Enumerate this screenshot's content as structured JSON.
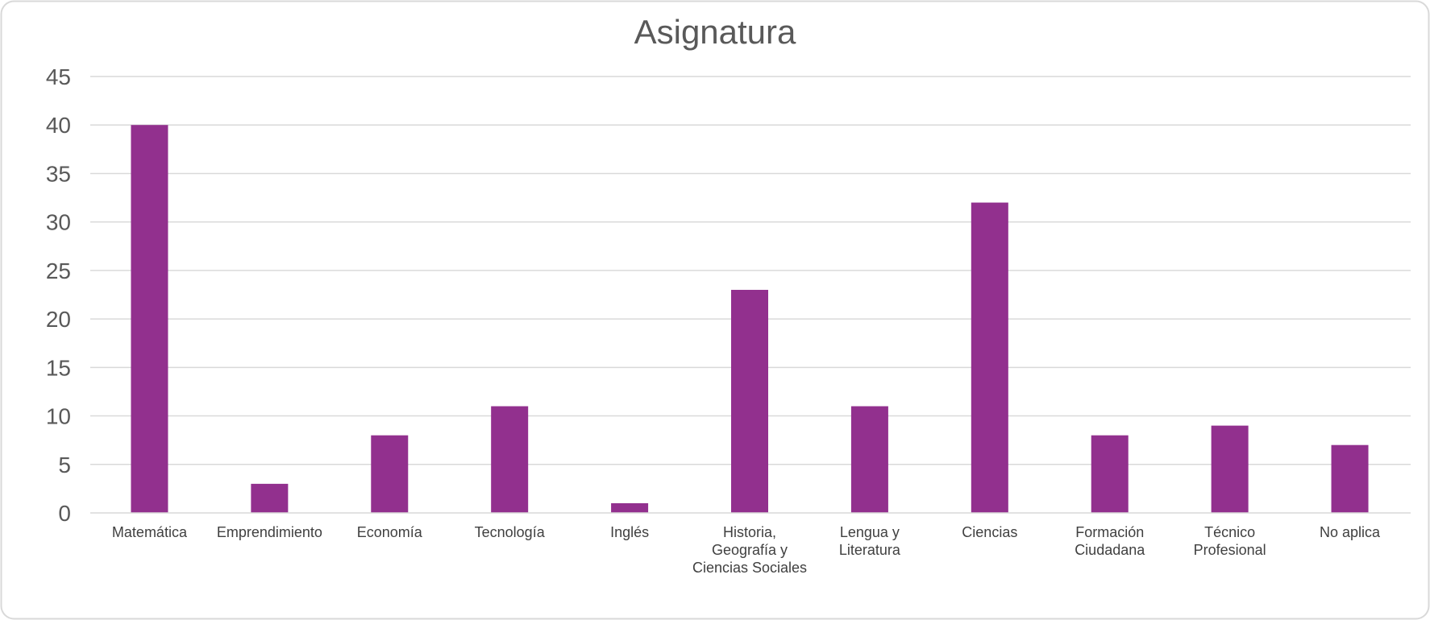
{
  "chart_data": {
    "type": "bar",
    "title": "Asignatura",
    "xlabel": "",
    "ylabel": "",
    "categories": [
      [
        "Matemática"
      ],
      [
        "Emprendimiento"
      ],
      [
        "Economía"
      ],
      [
        "Tecnología"
      ],
      [
        "Inglés"
      ],
      [
        "Historia,",
        "Geografía y",
        "Ciencias Sociales"
      ],
      [
        "Lengua y",
        "Literatura"
      ],
      [
        "Ciencias"
      ],
      [
        "Formación",
        "Ciudadana"
      ],
      [
        "Técnico",
        "Profesional"
      ],
      [
        "No aplica"
      ]
    ],
    "values": [
      40,
      3,
      8,
      11,
      1,
      23,
      11,
      32,
      8,
      9,
      7
    ],
    "ylim": [
      0,
      45
    ],
    "yticks": [
      "0",
      "5",
      "10",
      "15",
      "20",
      "25",
      "30",
      "35",
      "40",
      "45"
    ],
    "grid": true,
    "legend": "none",
    "colors": {
      "bar": "#92308E",
      "grid": "#D9D9D9",
      "frame": "#D9D9D9"
    }
  }
}
